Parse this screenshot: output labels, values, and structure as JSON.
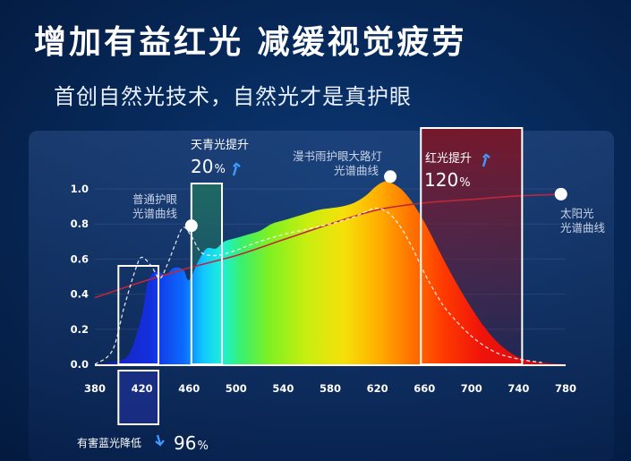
{
  "header": {
    "title": "增加有益红光  减缓视觉疲劳",
    "subtitle": "首创自然光技术，自然光才是真护眼"
  },
  "annotations": {
    "cyan": {
      "label": "天青光提升",
      "value": "20",
      "unit": "%"
    },
    "red": {
      "label": "红光提升",
      "value": "120",
      "unit": "%"
    },
    "blue": {
      "label": "有害蓝光降低",
      "value": "96",
      "unit": "%"
    },
    "product_curve_label": [
      "漫书雨护眼大路灯",
      "光谱曲线"
    ],
    "normal_curve_label": [
      "普通护眼",
      "光谱曲线"
    ],
    "sun_curve_label": [
      "太阳光",
      "光谱曲线"
    ]
  },
  "colors": {
    "cyan_box": "#1f6b63",
    "red_box": "#7a1628",
    "blue_box": "#1b2f8a",
    "sun_curve": "#c0263a"
  },
  "chart_data": {
    "type": "area",
    "xlim": [
      380,
      780
    ],
    "ylim": [
      0,
      1.0
    ],
    "x_ticks": [
      380,
      420,
      460,
      500,
      540,
      580,
      620,
      660,
      700,
      740,
      780
    ],
    "y_ticks": [
      "0.0",
      "0.2",
      "0.4",
      "0.6",
      "0.8",
      "1.0"
    ],
    "series": [
      {
        "name": "漫书雨护眼大路灯光谱曲线",
        "style": "filled-gradient",
        "x": [
          380,
          400,
          410,
          420,
          425,
          432,
          440,
          447,
          455,
          460,
          468,
          475,
          483,
          490,
          500,
          510,
          520,
          530,
          540,
          550,
          560,
          570,
          580,
          590,
          600,
          610,
          618,
          625,
          630,
          640,
          650,
          660,
          670,
          680,
          690,
          700,
          710,
          720,
          730,
          740,
          750,
          760,
          780
        ],
        "values": [
          0.0,
          0.02,
          0.07,
          0.28,
          0.47,
          0.53,
          0.51,
          0.55,
          0.54,
          0.48,
          0.59,
          0.66,
          0.66,
          0.7,
          0.72,
          0.74,
          0.76,
          0.8,
          0.82,
          0.84,
          0.86,
          0.88,
          0.89,
          0.9,
          0.92,
          0.96,
          1.01,
          1.04,
          1.04,
          1.0,
          0.92,
          0.81,
          0.68,
          0.55,
          0.43,
          0.32,
          0.22,
          0.14,
          0.08,
          0.04,
          0.02,
          0.01,
          0.0
        ]
      },
      {
        "name": "普通护眼光谱曲线",
        "style": "dashed-white",
        "x": [
          380,
          395,
          405,
          415,
          420,
          428,
          435,
          441,
          448,
          455,
          462,
          470,
          480,
          490,
          500,
          520,
          540,
          560,
          580,
          600,
          610,
          620,
          630,
          640,
          650,
          660,
          670,
          680,
          700,
          720,
          740,
          760
        ],
        "values": [
          0.0,
          0.08,
          0.33,
          0.55,
          0.61,
          0.56,
          0.49,
          0.56,
          0.68,
          0.78,
          0.73,
          0.64,
          0.62,
          0.63,
          0.65,
          0.7,
          0.74,
          0.77,
          0.8,
          0.84,
          0.87,
          0.89,
          0.86,
          0.78,
          0.66,
          0.52,
          0.4,
          0.3,
          0.16,
          0.07,
          0.03,
          0.01
        ]
      },
      {
        "name": "太阳光光谱曲线",
        "style": "red-line",
        "x": [
          380,
          420,
          460,
          500,
          540,
          580,
          620,
          660,
          700,
          740,
          780
        ],
        "values": [
          0.38,
          0.47,
          0.55,
          0.62,
          0.71,
          0.8,
          0.88,
          0.92,
          0.94,
          0.96,
          0.97
        ]
      }
    ],
    "markers": [
      {
        "x": 462,
        "y": 0.79
      },
      {
        "x": 631,
        "y": 1.07
      },
      {
        "x": 776,
        "y": 0.97
      }
    ],
    "highlight_ranges": [
      {
        "id": "blue",
        "from": 400,
        "to": 434
      },
      {
        "id": "cyan",
        "from": 462,
        "to": 488
      },
      {
        "id": "red",
        "from": 657,
        "to": 743
      }
    ]
  }
}
